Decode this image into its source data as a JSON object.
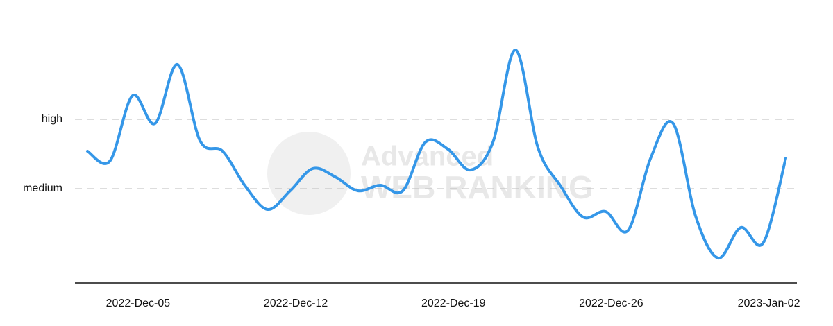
{
  "chart_data": {
    "type": "line",
    "categories": [
      null,
      null,
      "2022-Dec-05",
      null,
      null,
      null,
      null,
      null,
      null,
      "2022-Dec-12",
      null,
      null,
      null,
      null,
      null,
      null,
      "2022-Dec-19",
      null,
      null,
      null,
      null,
      null,
      null,
      "2022-Dec-26",
      null,
      null,
      null,
      null,
      null,
      null,
      "2023-Jan-02",
      null
    ],
    "series": [
      {
        "color": "#3597e8",
        "values": [
          1.54,
          1.4,
          2.34,
          1.94,
          2.79,
          1.69,
          1.54,
          1.04,
          0.7,
          0.97,
          1.29,
          1.17,
          0.97,
          1.05,
          0.97,
          1.67,
          1.57,
          1.27,
          1.67,
          3.0,
          1.59,
          1.04,
          0.59,
          0.67,
          0.4,
          1.44,
          1.94,
          0.6,
          0.0,
          0.44,
          0.22,
          1.44
        ]
      }
    ],
    "ylim": [
      -0.36,
      3.12
    ],
    "yticks": [
      {
        "value": 1,
        "label": "medium"
      },
      {
        "value": 2,
        "label": "high"
      }
    ],
    "grid": true,
    "watermark": [
      "Advanced",
      "WEB RANKING"
    ]
  }
}
